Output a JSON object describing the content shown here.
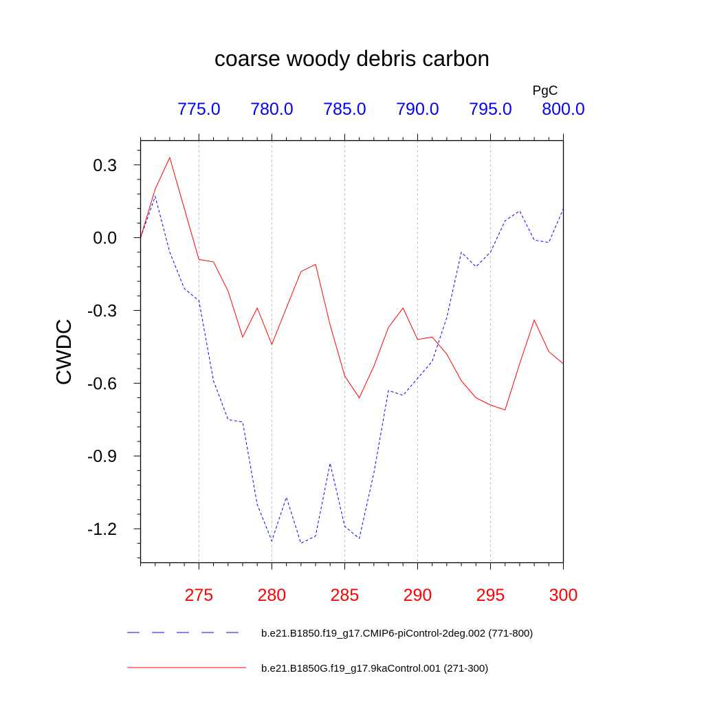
{
  "chart_data": {
    "type": "line",
    "title": "coarse woody debris carbon",
    "ylabel": "CWDC",
    "units": "PgC",
    "ylim": [
      -1.34,
      0.4
    ],
    "yticks": [
      "0.3",
      "0.0",
      "-0.3",
      "-0.6",
      "-0.9",
      "-1.2"
    ],
    "grid": "vertical dashed",
    "bottom_axis": {
      "color": "#ff0000",
      "xlim": [
        271,
        300
      ],
      "ticks": [
        "275",
        "280",
        "285",
        "290",
        "295",
        "300"
      ]
    },
    "top_axis": {
      "color": "#0000ff",
      "xlim": [
        771,
        800
      ],
      "ticks": [
        "775.0",
        "780.0",
        "785.0",
        "790.0",
        "795.0",
        "800.0"
      ]
    },
    "series": [
      {
        "name": "b.e21.B1850.f19_g17.CMIP6-piControl-2deg.002 (771-800)",
        "color": "#0000ff",
        "dash": "dashed",
        "axis": "top",
        "x": [
          771,
          772,
          773,
          774,
          775,
          776,
          777,
          778,
          779,
          780,
          781,
          782,
          783,
          784,
          785,
          786,
          787,
          788,
          789,
          790,
          791,
          792,
          793,
          794,
          795,
          796,
          797,
          798,
          799,
          800
        ],
        "values": [
          0.0,
          0.17,
          -0.06,
          -0.21,
          -0.26,
          -0.59,
          -0.75,
          -0.76,
          -1.1,
          -1.25,
          -1.07,
          -1.26,
          -1.23,
          -0.93,
          -1.19,
          -1.24,
          -0.97,
          -0.63,
          -0.65,
          -0.58,
          -0.51,
          -0.33,
          -0.06,
          -0.12,
          -0.06,
          0.07,
          0.11,
          -0.01,
          -0.02,
          0.12
        ]
      },
      {
        "name": "b.e21.B1850G.f19_g17.9kaControl.001 (271-300)",
        "color": "#ff0000",
        "dash": "solid",
        "axis": "bottom",
        "x": [
          271,
          272,
          273,
          274,
          275,
          276,
          277,
          278,
          279,
          280,
          281,
          282,
          283,
          284,
          285,
          286,
          287,
          288,
          289,
          290,
          291,
          292,
          293,
          294,
          295,
          296,
          297,
          298,
          299,
          300
        ],
        "values": [
          0.0,
          0.2,
          0.33,
          0.12,
          -0.09,
          -0.1,
          -0.22,
          -0.41,
          -0.29,
          -0.44,
          -0.29,
          -0.14,
          -0.11,
          -0.36,
          -0.57,
          -0.66,
          -0.53,
          -0.37,
          -0.29,
          -0.42,
          -0.41,
          -0.48,
          -0.59,
          -0.66,
          -0.69,
          -0.71,
          -0.52,
          -0.34,
          -0.47,
          -0.52
        ]
      }
    ]
  }
}
